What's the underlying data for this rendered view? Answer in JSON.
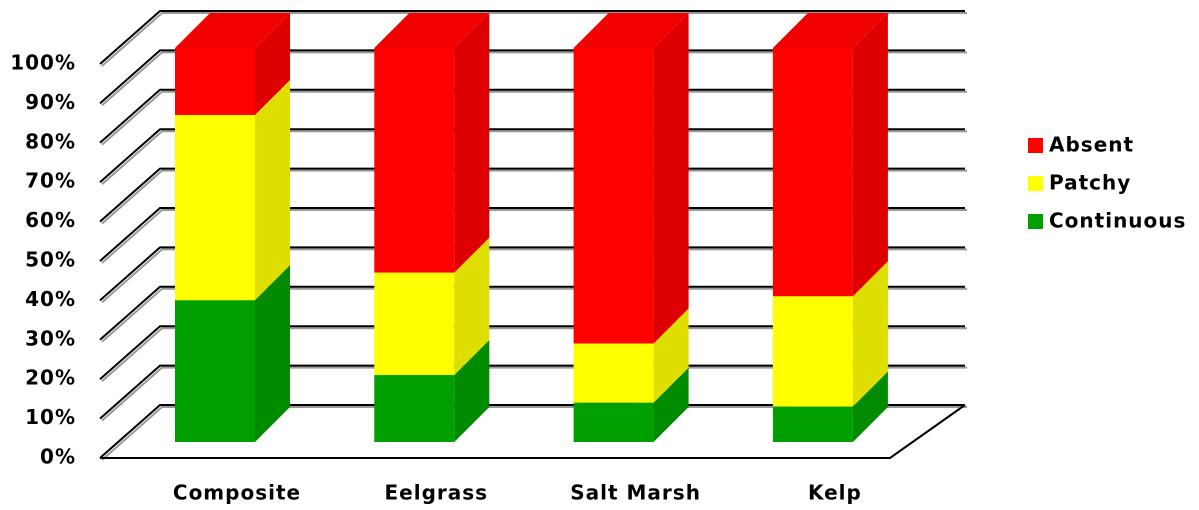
{
  "chart_data": {
    "type": "stacked_bar_3d",
    "categories": [
      "Composite",
      "Eelgrass",
      "Salt Marsh",
      "Kelp"
    ],
    "series": [
      {
        "name": "Continuous",
        "color": "#00a000",
        "values": [
          36,
          17,
          10,
          9
        ]
      },
      {
        "name": "Patchy",
        "color": "#ffff00",
        "values": [
          47,
          26,
          15,
          28
        ]
      },
      {
        "name": "Absent",
        "color": "#ff0000",
        "values": [
          17,
          57,
          75,
          63
        ]
      }
    ],
    "ylim": [
      0,
      100
    ],
    "yticks": [
      {
        "value": 0,
        "label": "0%"
      },
      {
        "value": 10,
        "label": "10%"
      },
      {
        "value": 20,
        "label": "20%"
      },
      {
        "value": 30,
        "label": "30%"
      },
      {
        "value": 40,
        "label": "40%"
      },
      {
        "value": 50,
        "label": "50%"
      },
      {
        "value": 60,
        "label": "60%"
      },
      {
        "value": 70,
        "label": "70%"
      },
      {
        "value": 80,
        "label": "80%"
      },
      {
        "value": 90,
        "label": "90%"
      },
      {
        "value": 100,
        "label": "100%"
      }
    ],
    "grid": true,
    "legend": "right"
  }
}
